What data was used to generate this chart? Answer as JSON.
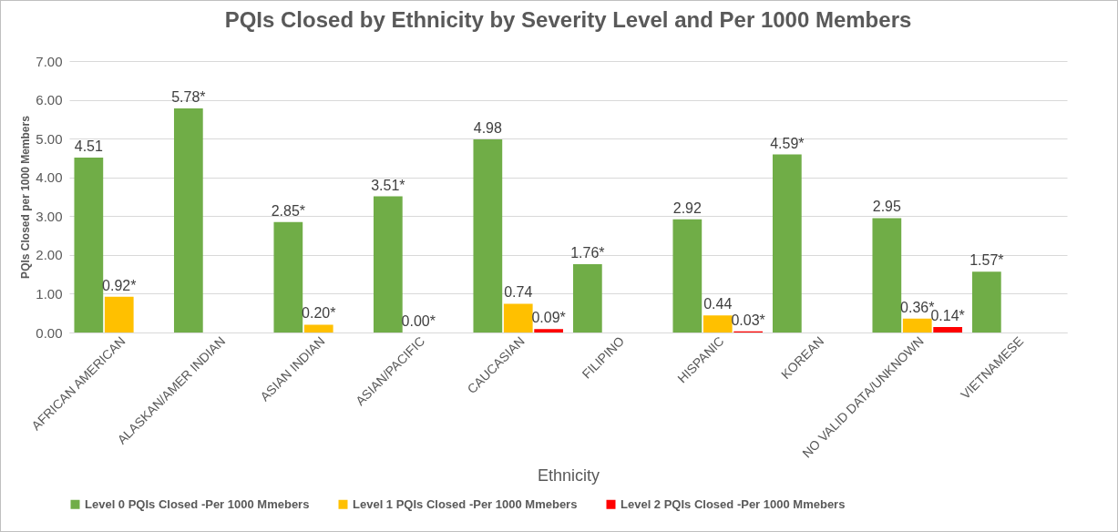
{
  "chart_data": {
    "type": "bar",
    "title": "PQIs Closed by Ethnicity by Severity Level and Per 1000 Members",
    "xlabel": "Ethnicity",
    "ylabel": "PQIs Closed per 1000 Members",
    "categories": [
      "AFRICAN AMERICAN",
      "ALASKAN/AMER INDIAN",
      "ASIAN INDIAN",
      "ASIAN/PACIFIC",
      "CAUCASIAN",
      "FILIPINO",
      "HISPANIC",
      "KOREAN",
      "NO VALID DATA/UNKNOWN",
      "VIETNAMESE"
    ],
    "series": [
      {
        "name": "Level 0 PQIs Closed -Per 1000 Mmebers",
        "color": "#70ad47",
        "values": [
          4.51,
          5.78,
          2.85,
          3.51,
          4.98,
          1.76,
          2.92,
          4.59,
          2.95,
          1.57
        ],
        "value_labels": [
          "4.51",
          "5.78*",
          "2.85*",
          "3.51*",
          "4.98",
          "1.76*",
          "2.92",
          "4.59*",
          "2.95",
          "1.57*"
        ]
      },
      {
        "name": "Level 1 PQIs Closed -Per 1000 Mmebers",
        "color": "#ffc000",
        "values": [
          0.92,
          null,
          0.2,
          0.0,
          0.74,
          null,
          0.44,
          null,
          0.36,
          null
        ],
        "value_labels": [
          "0.92*",
          null,
          "0.20*",
          "0.00*",
          "0.74",
          null,
          "0.44",
          null,
          "0.36*",
          null
        ]
      },
      {
        "name": "Level 2 PQIs Closed -Per 1000 Mmebers",
        "color": "#ff0000",
        "values": [
          null,
          null,
          null,
          null,
          0.09,
          null,
          0.03,
          null,
          0.14,
          null
        ],
        "value_labels": [
          null,
          null,
          null,
          null,
          "0.09*",
          null,
          "0.03*",
          null,
          "0.14*",
          null
        ]
      }
    ],
    "ylim": [
      0,
      7
    ],
    "yticks": [
      {
        "value": 0,
        "label": "0.00"
      },
      {
        "value": 1,
        "label": "1.00"
      },
      {
        "value": 2,
        "label": "2.00"
      },
      {
        "value": 3,
        "label": "3.00"
      },
      {
        "value": 4,
        "label": "4.00"
      },
      {
        "value": 5,
        "label": "5.00"
      },
      {
        "value": 6,
        "label": "6.00"
      },
      {
        "value": 7,
        "label": "7.00"
      }
    ],
    "grid": "y",
    "legend": "bottom"
  }
}
